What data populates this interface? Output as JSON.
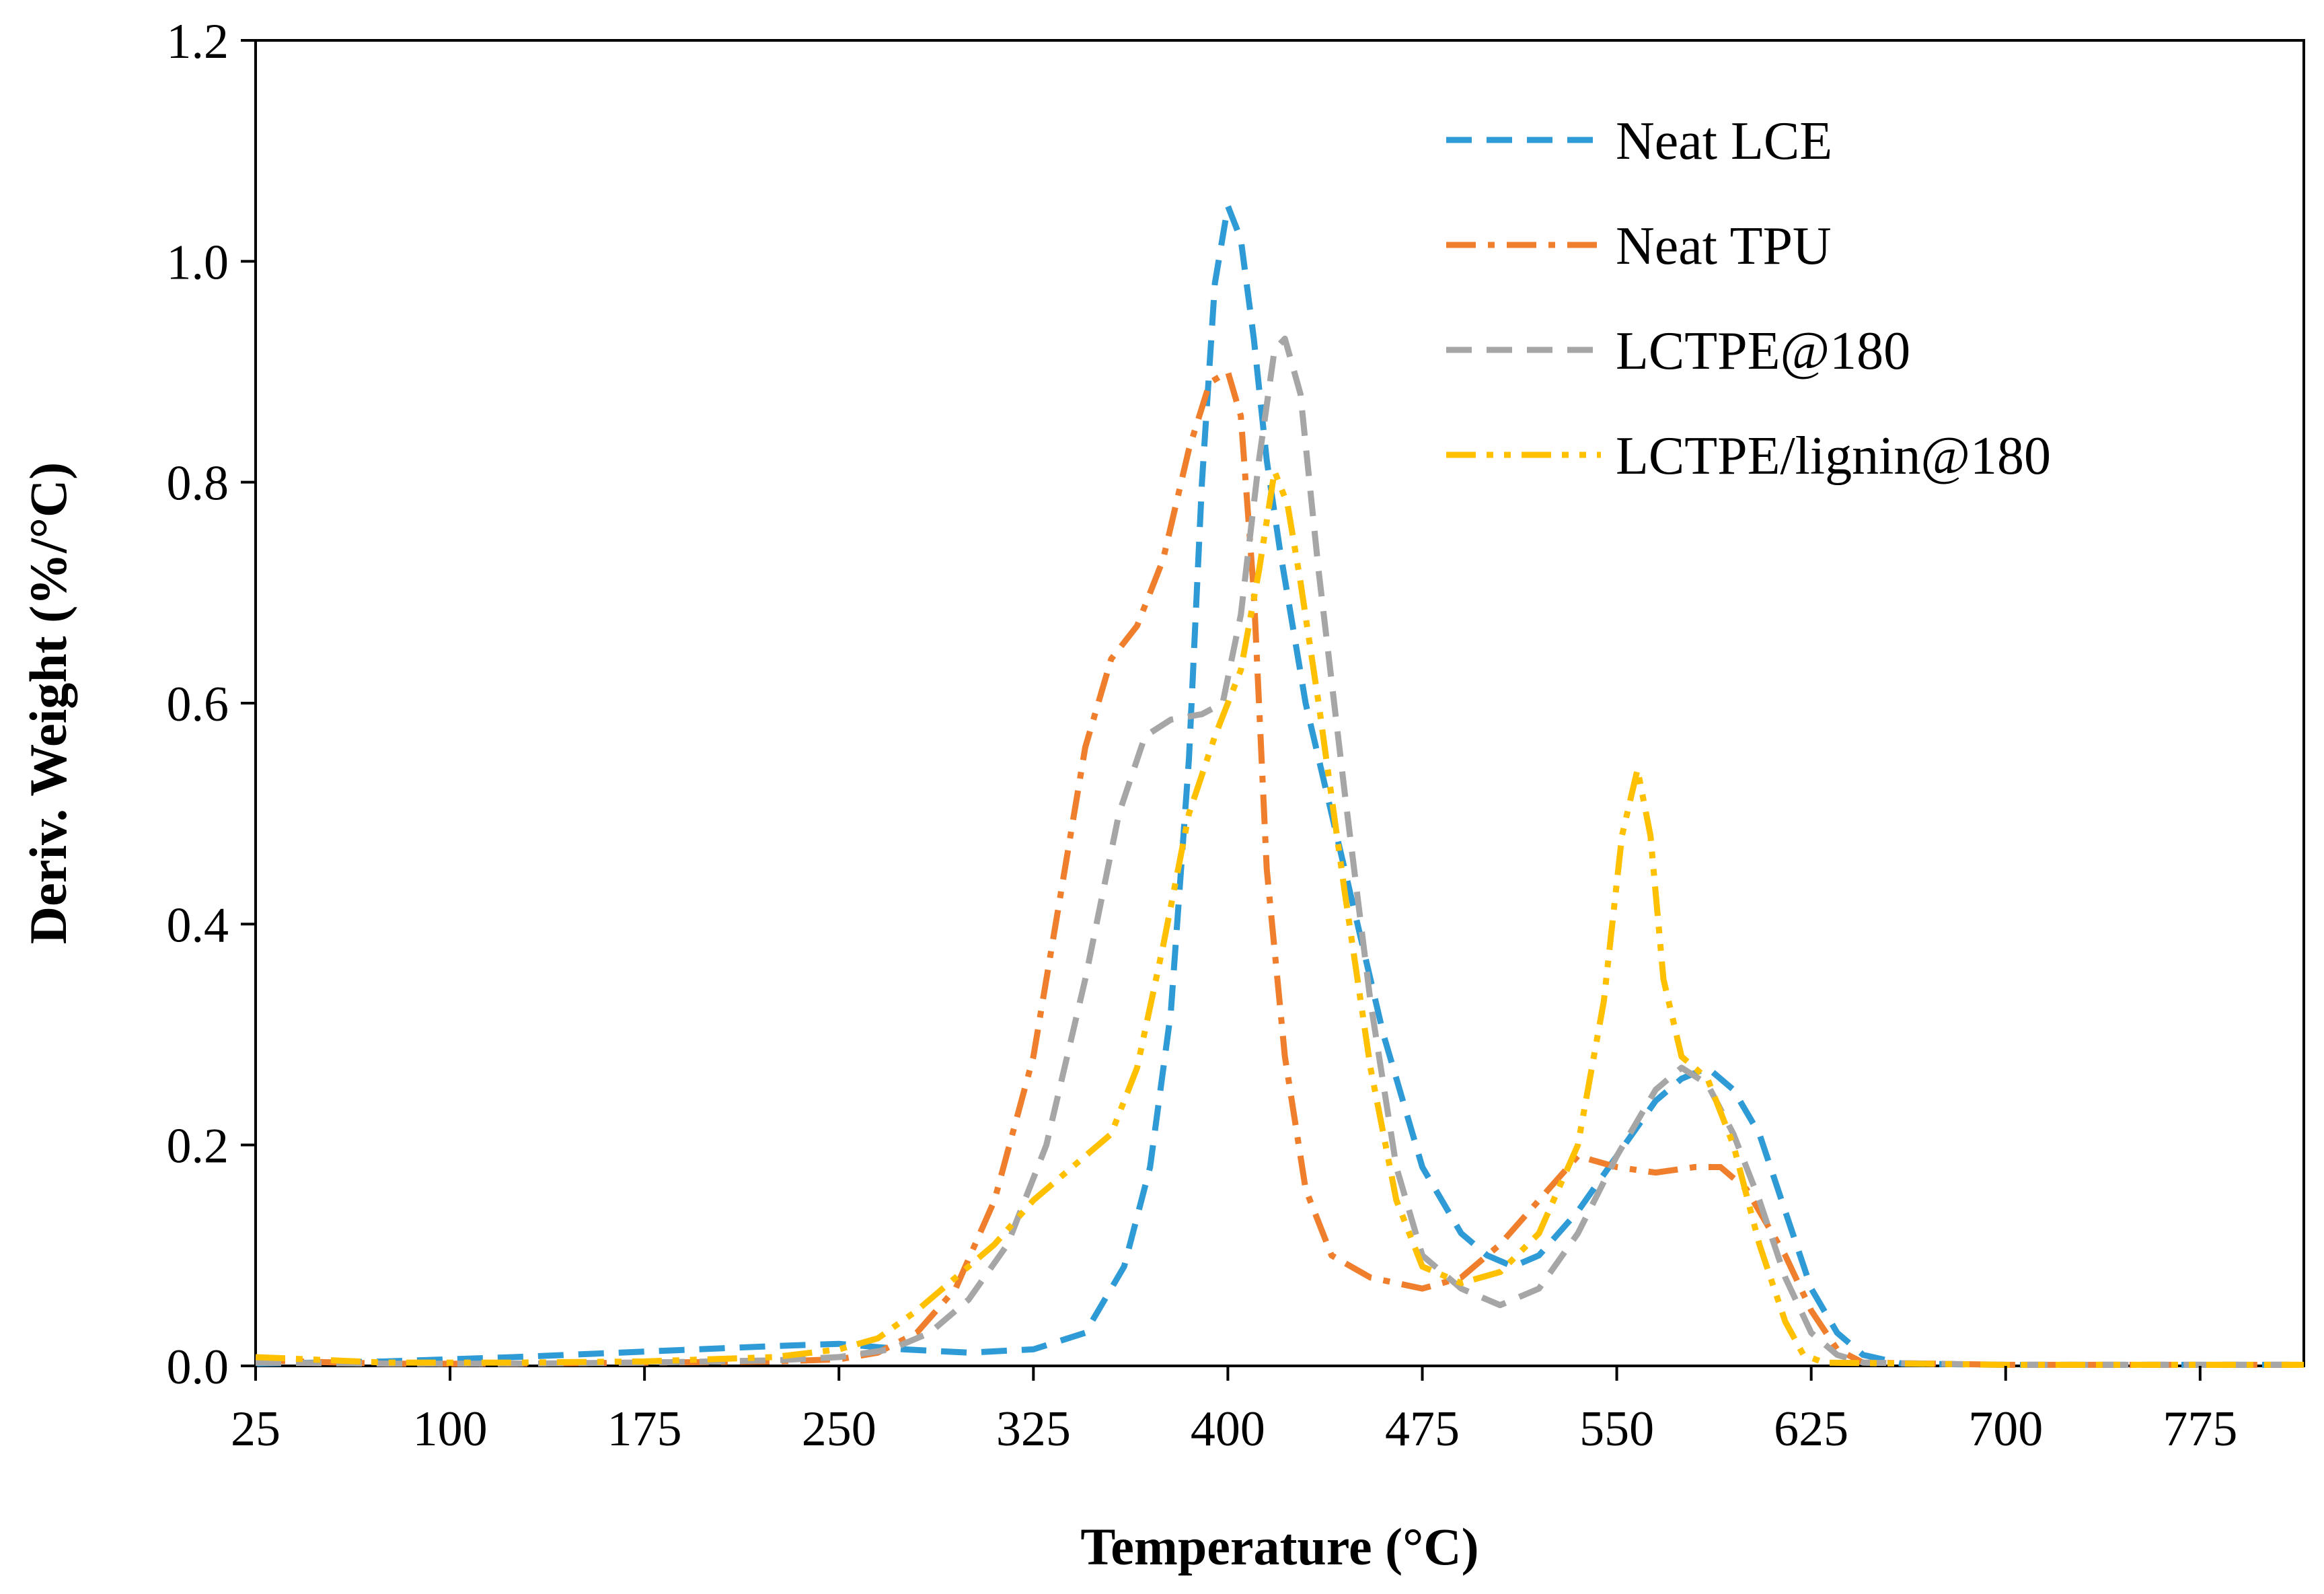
{
  "chart_data": {
    "type": "line",
    "title": "",
    "xlabel": "Temperature (°C)",
    "ylabel": "Deriv. Weight (%/°C)",
    "xlim": [
      25,
      815
    ],
    "ylim": [
      0,
      1.2
    ],
    "x_ticks": [
      25,
      100,
      175,
      250,
      325,
      400,
      475,
      550,
      625,
      700,
      775
    ],
    "y_ticks": [
      0,
      0.2,
      0.4,
      0.6,
      0.8,
      1.0,
      1.2
    ],
    "x_tick_labels": [
      "25",
      "100",
      "175",
      "250",
      "325",
      "400",
      "475",
      "550",
      "625",
      "700",
      "775"
    ],
    "y_tick_labels": [
      "0.0",
      "0.2",
      "0.4",
      "0.6",
      "0.8",
      "1.0",
      "1.2"
    ],
    "grid": false,
    "legend_position": "top-right",
    "series": [
      {
        "name": "Neat LCE",
        "color": "#2E9BD6",
        "dash": "dash",
        "points": [
          [
            25,
            0.002
          ],
          [
            75,
            0.004
          ],
          [
            125,
            0.008
          ],
          [
            175,
            0.013
          ],
          [
            225,
            0.018
          ],
          [
            250,
            0.02
          ],
          [
            275,
            0.015
          ],
          [
            300,
            0.012
          ],
          [
            325,
            0.015
          ],
          [
            345,
            0.03
          ],
          [
            360,
            0.09
          ],
          [
            370,
            0.18
          ],
          [
            378,
            0.32
          ],
          [
            385,
            0.55
          ],
          [
            390,
            0.8
          ],
          [
            395,
            0.98
          ],
          [
            400,
            1.05
          ],
          [
            405,
            1.02
          ],
          [
            410,
            0.93
          ],
          [
            415,
            0.82
          ],
          [
            420,
            0.74
          ],
          [
            430,
            0.6
          ],
          [
            445,
            0.45
          ],
          [
            460,
            0.3
          ],
          [
            475,
            0.18
          ],
          [
            490,
            0.12
          ],
          [
            500,
            0.1
          ],
          [
            510,
            0.09
          ],
          [
            520,
            0.1
          ],
          [
            535,
            0.14
          ],
          [
            550,
            0.19
          ],
          [
            565,
            0.24
          ],
          [
            575,
            0.26
          ],
          [
            585,
            0.27
          ],
          [
            595,
            0.25
          ],
          [
            605,
            0.21
          ],
          [
            615,
            0.14
          ],
          [
            625,
            0.07
          ],
          [
            635,
            0.03
          ],
          [
            645,
            0.01
          ],
          [
            660,
            0.002
          ],
          [
            700,
            0.001
          ],
          [
            815,
            0.001
          ]
        ]
      },
      {
        "name": "Neat TPU",
        "color": "#F07F2D",
        "dash": "dashdot",
        "points": [
          [
            25,
            0.005
          ],
          [
            75,
            0.002
          ],
          [
            125,
            0.002
          ],
          [
            175,
            0.003
          ],
          [
            225,
            0.004
          ],
          [
            250,
            0.006
          ],
          [
            265,
            0.012
          ],
          [
            280,
            0.03
          ],
          [
            295,
            0.07
          ],
          [
            310,
            0.15
          ],
          [
            325,
            0.28
          ],
          [
            335,
            0.42
          ],
          [
            345,
            0.56
          ],
          [
            355,
            0.64
          ],
          [
            365,
            0.67
          ],
          [
            375,
            0.73
          ],
          [
            385,
            0.83
          ],
          [
            393,
            0.89
          ],
          [
            400,
            0.9
          ],
          [
            405,
            0.86
          ],
          [
            410,
            0.7
          ],
          [
            415,
            0.45
          ],
          [
            422,
            0.28
          ],
          [
            430,
            0.16
          ],
          [
            440,
            0.1
          ],
          [
            455,
            0.08
          ],
          [
            475,
            0.07
          ],
          [
            490,
            0.08
          ],
          [
            505,
            0.11
          ],
          [
            520,
            0.15
          ],
          [
            535,
            0.19
          ],
          [
            550,
            0.18
          ],
          [
            565,
            0.175
          ],
          [
            580,
            0.18
          ],
          [
            590,
            0.18
          ],
          [
            600,
            0.16
          ],
          [
            615,
            0.1
          ],
          [
            625,
            0.05
          ],
          [
            635,
            0.015
          ],
          [
            645,
            0.003
          ],
          [
            700,
            0.001
          ],
          [
            815,
            0.001
          ]
        ]
      },
      {
        "name": "LCTPE@180",
        "color": "#A6A6A6",
        "dash": "dash",
        "points": [
          [
            25,
            0.003
          ],
          [
            75,
            0.002
          ],
          [
            125,
            0.002
          ],
          [
            175,
            0.003
          ],
          [
            225,
            0.005
          ],
          [
            250,
            0.008
          ],
          [
            270,
            0.015
          ],
          [
            285,
            0.03
          ],
          [
            300,
            0.06
          ],
          [
            315,
            0.11
          ],
          [
            330,
            0.2
          ],
          [
            345,
            0.35
          ],
          [
            358,
            0.5
          ],
          [
            368,
            0.57
          ],
          [
            378,
            0.585
          ],
          [
            390,
            0.59
          ],
          [
            398,
            0.6
          ],
          [
            405,
            0.68
          ],
          [
            412,
            0.82
          ],
          [
            418,
            0.92
          ],
          [
            422,
            0.93
          ],
          [
            428,
            0.88
          ],
          [
            435,
            0.72
          ],
          [
            445,
            0.52
          ],
          [
            455,
            0.33
          ],
          [
            465,
            0.18
          ],
          [
            475,
            0.1
          ],
          [
            490,
            0.07
          ],
          [
            505,
            0.055
          ],
          [
            520,
            0.07
          ],
          [
            535,
            0.12
          ],
          [
            550,
            0.19
          ],
          [
            565,
            0.25
          ],
          [
            575,
            0.27
          ],
          [
            585,
            0.255
          ],
          [
            595,
            0.21
          ],
          [
            605,
            0.15
          ],
          [
            615,
            0.08
          ],
          [
            625,
            0.03
          ],
          [
            635,
            0.01
          ],
          [
            645,
            0.003
          ],
          [
            700,
            0.001
          ],
          [
            815,
            0.001
          ]
        ]
      },
      {
        "name": "LCTPE/lignin@180",
        "color": "#FFC000",
        "dash": "dashdotdot",
        "points": [
          [
            25,
            0.008
          ],
          [
            75,
            0.003
          ],
          [
            125,
            0.003
          ],
          [
            175,
            0.004
          ],
          [
            225,
            0.008
          ],
          [
            250,
            0.015
          ],
          [
            265,
            0.025
          ],
          [
            280,
            0.05
          ],
          [
            295,
            0.08
          ],
          [
            310,
            0.11
          ],
          [
            325,
            0.15
          ],
          [
            340,
            0.18
          ],
          [
            355,
            0.21
          ],
          [
            365,
            0.27
          ],
          [
            375,
            0.38
          ],
          [
            385,
            0.5
          ],
          [
            395,
            0.57
          ],
          [
            405,
            0.63
          ],
          [
            412,
            0.72
          ],
          [
            418,
            0.81
          ],
          [
            423,
            0.78
          ],
          [
            428,
            0.71
          ],
          [
            435,
            0.6
          ],
          [
            445,
            0.43
          ],
          [
            455,
            0.27
          ],
          [
            465,
            0.15
          ],
          [
            475,
            0.09
          ],
          [
            490,
            0.075
          ],
          [
            505,
            0.085
          ],
          [
            520,
            0.12
          ],
          [
            535,
            0.2
          ],
          [
            545,
            0.33
          ],
          [
            552,
            0.48
          ],
          [
            558,
            0.54
          ],
          [
            563,
            0.48
          ],
          [
            568,
            0.35
          ],
          [
            575,
            0.28
          ],
          [
            585,
            0.26
          ],
          [
            595,
            0.2
          ],
          [
            605,
            0.11
          ],
          [
            615,
            0.04
          ],
          [
            622,
            0.01
          ],
          [
            630,
            0.003
          ],
          [
            700,
            0.001
          ],
          [
            815,
            0.001
          ]
        ]
      }
    ]
  }
}
